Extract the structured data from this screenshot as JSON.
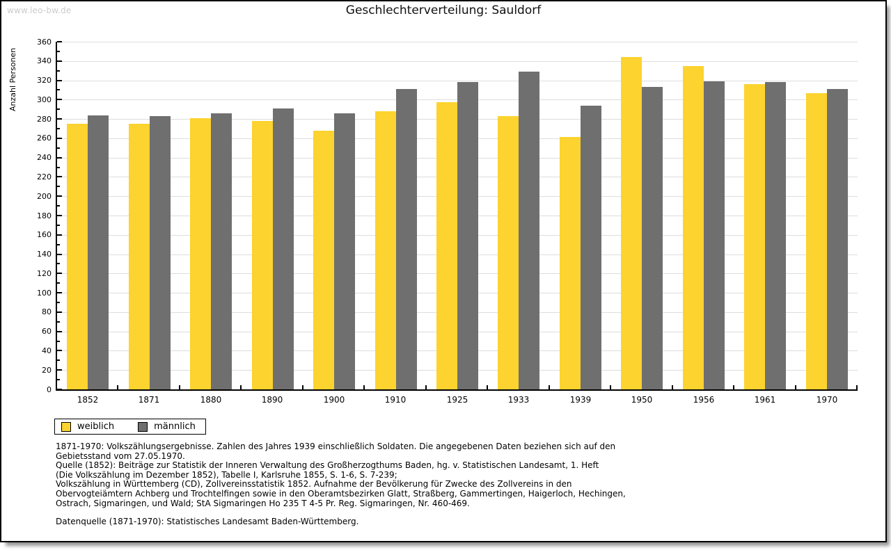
{
  "page": {
    "watermark": "www.leo-bw.de",
    "title": "Geschlechterverteilung: Sauldorf"
  },
  "chart_data": {
    "type": "bar",
    "title": "Geschlechterverteilung: Sauldorf",
    "xlabel": "",
    "ylabel": "Anzahl Personen",
    "ylim": [
      0,
      360
    ],
    "ytick_step": 20,
    "ytick_minor_step": 10,
    "grid": true,
    "legend_position": "bottom-left",
    "categories": [
      "1852",
      "1871",
      "1880",
      "1890",
      "1900",
      "1910",
      "1925",
      "1933",
      "1939",
      "1950",
      "1956",
      "1961",
      "1970"
    ],
    "series": [
      {
        "name": "weiblich",
        "color": "#FCD32F",
        "values": [
          275,
          275,
          281,
          278,
          268,
          288,
          297,
          283,
          261,
          344,
          335,
          316,
          307
        ]
      },
      {
        "name": "männlich",
        "color": "#6F6F6F",
        "values": [
          284,
          283,
          286,
          291,
          286,
          311,
          318,
          329,
          294,
          313,
          319,
          318,
          311
        ]
      }
    ],
    "axis_color": "#000000",
    "gridline_color": "#dddddd"
  },
  "notes": {
    "lines": [
      "1871-1970: Volkszählungsergebnisse. Zahlen des Jahres 1939 einschließlich Soldaten. Die angegebenen Daten beziehen sich auf den",
      "Gebietsstand vom 27.05.1970.",
      "Quelle (1852): Beiträge zur Statistik der Inneren Verwaltung des Großherzogthums Baden, hg. v. Statistischen Landesamt, 1. Heft",
      "(Die Volkszählung im Dezember 1852), Tabelle I, Karlsruhe 1855, S. 1-6, S. 7-239;",
      "Volkszählung in Württemberg (CD), Zollvereinsstatistik 1852. Aufnahme der Bevölkerung für Zwecke des Zollvereins in den",
      "Obervogteiämtern Achberg und Trochtelfingen sowie in den Oberamtsbezirken Glatt, Straßberg, Gammertingen, Haigerloch, Hechingen,",
      "Ostrach, Sigmaringen, und Wald; StA Sigmaringen Ho 235 T 4-5 Pr. Reg. Sigmaringen, Nr. 460-469."
    ],
    "datasource": "Datenquelle (1871-1970): Statistisches Landesamt Baden-Württemberg."
  }
}
